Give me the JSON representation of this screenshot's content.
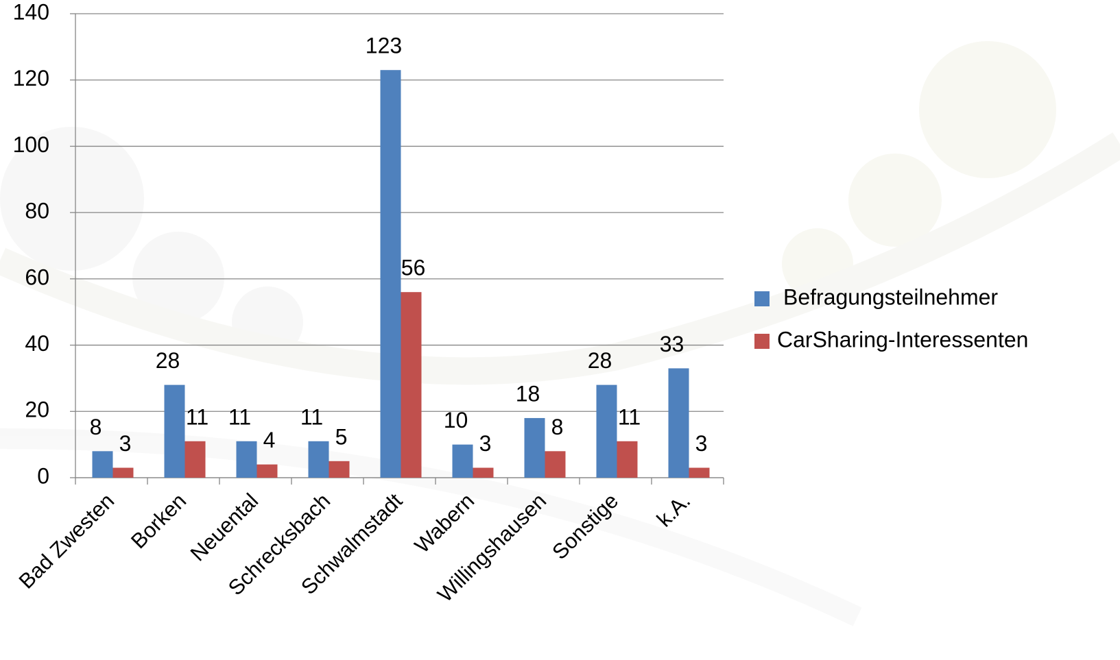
{
  "chart_data": {
    "type": "bar",
    "categories": [
      "Bad Zwesten",
      "Borken",
      "Neuental",
      "Schrecksbach",
      "Schwalmstadt",
      "Wabern",
      "Willingshausen",
      "Sonstige",
      "k.A."
    ],
    "series": [
      {
        "name": "Befragungsteilnehmer",
        "color": "#4f81bd",
        "values": [
          8,
          28,
          11,
          11,
          123,
          10,
          18,
          28,
          33
        ]
      },
      {
        "name": "CarSharing-Interessenten",
        "color": "#c0504d",
        "values": [
          3,
          11,
          4,
          5,
          56,
          3,
          8,
          11,
          3
        ]
      }
    ],
    "ylim": [
      0,
      140
    ],
    "yticks": [
      0,
      20,
      40,
      60,
      80,
      100,
      120,
      140
    ],
    "grid": true,
    "legend": "right"
  }
}
